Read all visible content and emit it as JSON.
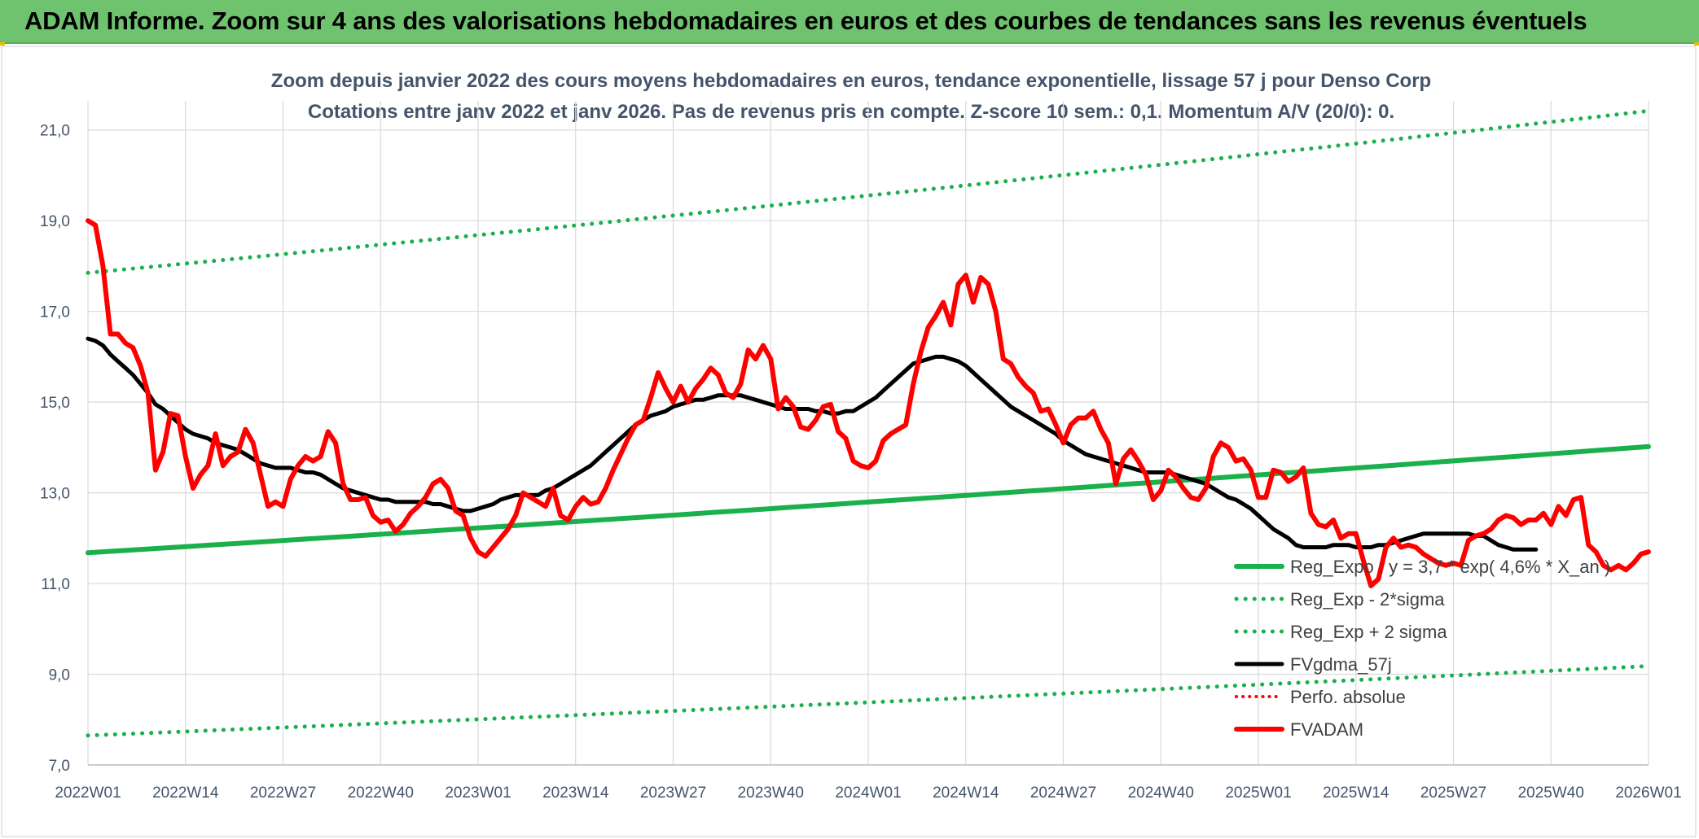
{
  "header": {
    "title": "ADAM Informe. Zoom sur 4 ans des valorisations hebdomadaires en euros et des courbes de tendances sans les revenus éventuels"
  },
  "chart_data": {
    "type": "line",
    "title": "Zoom depuis janvier 2022 des cours moyens hebdomadaires en euros, tendance exponentielle, lissage 57 j pour Denso Corp",
    "subtitle": "Cotations entre janv 2022 et janv 2026. Pas de revenus pris en compte. Z-score 10 sem.: 0,1. Momentum A/V (20/0): 0.",
    "ylim": [
      7,
      22
    ],
    "yticks": [
      "7,0",
      "9,0",
      "11,0",
      "13,0",
      "15,0",
      "17,0",
      "19,0",
      "21,0"
    ],
    "xticks": [
      "2022W01",
      "2022W14",
      "2022W27",
      "2022W40",
      "2023W01",
      "2023W14",
      "2023W27",
      "2023W40",
      "2024W01",
      "2024W14",
      "2024W27",
      "2024W40",
      "2025W01",
      "2025W14",
      "2025W27",
      "2025W40",
      "2026W01"
    ],
    "grid": true,
    "legend_position": "bottom-right",
    "colors": {
      "green": "#1ab04b",
      "black": "#000000",
      "red": "#ff0000",
      "grid": "#d9d9d9",
      "axis_text": "#44546a"
    },
    "series": [
      {
        "name": "Reg_Expo : y = 3,7 * exp( 4,6% *  X_an )",
        "style": "solid-green",
        "start": 11.68,
        "end": 14.02
      },
      {
        "name": "Reg_Exp - 2*sigma",
        "style": "dotted-green",
        "start": 7.65,
        "end": 9.18
      },
      {
        "name": "Reg_Exp + 2 sigma",
        "style": "dotted-green",
        "start": 17.85,
        "end": 21.42
      },
      {
        "name": "FVgdma_57j",
        "style": "solid-black",
        "values": [
          16.4,
          16.35,
          16.25,
          16.05,
          15.9,
          15.75,
          15.6,
          15.4,
          15.2,
          14.95,
          14.85,
          14.7,
          14.55,
          14.4,
          14.3,
          14.25,
          14.2,
          14.1,
          14.05,
          14,
          13.95,
          13.85,
          13.75,
          13.65,
          13.6,
          13.55,
          13.55,
          13.55,
          13.5,
          13.45,
          13.45,
          13.4,
          13.3,
          13.2,
          13.1,
          13.05,
          13,
          12.95,
          12.9,
          12.85,
          12.85,
          12.8,
          12.8,
          12.8,
          12.8,
          12.8,
          12.75,
          12.75,
          12.7,
          12.65,
          12.6,
          12.6,
          12.65,
          12.7,
          12.75,
          12.85,
          12.9,
          12.95,
          12.95,
          12.95,
          12.95,
          13.05,
          13.1,
          13.2,
          13.3,
          13.4,
          13.5,
          13.6,
          13.75,
          13.9,
          14.05,
          14.2,
          14.35,
          14.5,
          14.6,
          14.7,
          14.75,
          14.8,
          14.9,
          14.95,
          15,
          15.05,
          15.05,
          15.1,
          15.15,
          15.15,
          15.15,
          15.15,
          15.1,
          15.05,
          15,
          14.95,
          14.9,
          14.85,
          14.85,
          14.85,
          14.85,
          14.8,
          14.8,
          14.75,
          14.75,
          14.8,
          14.8,
          14.9,
          15,
          15.1,
          15.25,
          15.4,
          15.55,
          15.7,
          15.85,
          15.9,
          15.95,
          16,
          16,
          15.95,
          15.9,
          15.8,
          15.65,
          15.5,
          15.35,
          15.2,
          15.05,
          14.9,
          14.8,
          14.7,
          14.6,
          14.5,
          14.4,
          14.3,
          14.15,
          14.05,
          13.95,
          13.85,
          13.8,
          13.75,
          13.7,
          13.65,
          13.6,
          13.55,
          13.5,
          13.45,
          13.45,
          13.45,
          13.45,
          13.4,
          13.35,
          13.3,
          13.25,
          13.2,
          13.1,
          13,
          12.9,
          12.85,
          12.75,
          12.65,
          12.5,
          12.35,
          12.2,
          12.1,
          12,
          11.85,
          11.8,
          11.8,
          11.8,
          11.8,
          11.85,
          11.85,
          11.85,
          11.8,
          11.8,
          11.8,
          11.85,
          11.85,
          11.9,
          11.95,
          12,
          12.05,
          12.1,
          12.1,
          12.1,
          12.1,
          12.1,
          12.1,
          12.1,
          12.05,
          12.05,
          11.95,
          11.85,
          11.8,
          11.75,
          11.75,
          11.75,
          11.75
        ]
      },
      {
        "name": "Perfo. absolue",
        "style": "dotted-red",
        "values": []
      },
      {
        "name": "FVADAM",
        "style": "solid-red",
        "values": [
          19,
          18.9,
          18,
          16.5,
          16.5,
          16.3,
          16.2,
          15.8,
          15.2,
          13.5,
          13.9,
          14.75,
          14.7,
          13.8,
          13.1,
          13.4,
          13.6,
          14.3,
          13.6,
          13.8,
          13.9,
          14.4,
          14.1,
          13.4,
          12.7,
          12.8,
          12.7,
          13.3,
          13.6,
          13.8,
          13.7,
          13.8,
          14.35,
          14.1,
          13.2,
          12.85,
          12.85,
          12.9,
          12.5,
          12.35,
          12.4,
          12.15,
          12.3,
          12.55,
          12.7,
          12.9,
          13.2,
          13.3,
          13.1,
          12.6,
          12.5,
          12,
          11.7,
          11.6,
          11.8,
          12,
          12.2,
          12.5,
          13,
          12.9,
          12.8,
          12.7,
          13.1,
          12.5,
          12.4,
          12.7,
          12.9,
          12.75,
          12.8,
          13.1,
          13.5,
          13.85,
          14.2,
          14.5,
          14.6,
          15.1,
          15.65,
          15.3,
          15,
          15.35,
          15,
          15.3,
          15.5,
          15.75,
          15.6,
          15.2,
          15.1,
          15.4,
          16.15,
          15.95,
          16.25,
          15.95,
          14.85,
          15.1,
          14.9,
          14.45,
          14.4,
          14.6,
          14.9,
          14.95,
          14.35,
          14.2,
          13.7,
          13.6,
          13.55,
          13.7,
          14.15,
          14.3,
          14.4,
          14.5,
          15.4,
          16.1,
          16.65,
          16.9,
          17.2,
          16.7,
          17.6,
          17.8,
          17.2,
          17.75,
          17.6,
          17.0,
          15.95,
          15.85,
          15.55,
          15.35,
          15.2,
          14.8,
          14.85,
          14.5,
          14.1,
          14.5,
          14.65,
          14.65,
          14.8,
          14.4,
          14.1,
          13.2,
          13.75,
          13.95,
          13.7,
          13.4,
          12.85,
          13.05,
          13.5,
          13.35,
          13.1,
          12.9,
          12.85,
          13.1,
          13.8,
          14.1,
          14.0,
          13.7,
          13.75,
          13.5,
          12.9,
          12.9,
          13.5,
          13.45,
          13.25,
          13.35,
          13.55,
          12.55,
          12.3,
          12.25,
          12.4,
          12.0,
          12.1,
          12.1,
          11.5,
          10.95,
          11.1,
          11.8,
          12.0,
          11.8,
          11.85,
          11.8,
          11.65,
          11.55,
          11.45,
          11.4,
          11.45,
          11.4,
          11.95,
          12.05,
          12.1,
          12.2,
          12.4,
          12.5,
          12.45,
          12.3,
          12.4,
          12.4,
          12.55,
          12.3,
          12.7,
          12.5,
          12.85,
          12.9,
          11.85,
          11.7,
          11.4,
          11.3,
          11.4,
          11.3,
          11.45,
          11.65,
          11.7
        ]
      }
    ]
  }
}
